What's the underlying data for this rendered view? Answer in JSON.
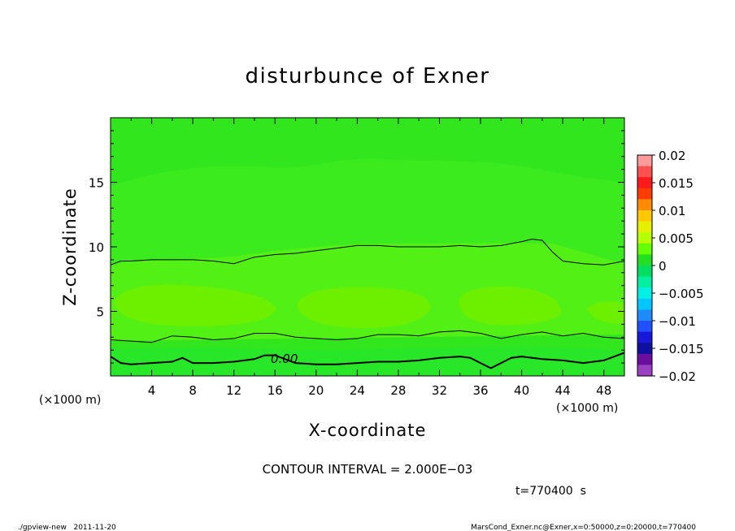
{
  "chart_data": {
    "type": "heatmap",
    "title": "disturbunce of Exner",
    "xlabel": "X-coordinate",
    "ylabel": "Z-coordinate",
    "x_unit_label_left": "(×1000 m)",
    "x_unit_label_right": "(×1000 m)",
    "xlim": [
      0,
      50
    ],
    "ylim": [
      0,
      20
    ],
    "x_ticks": [
      "4",
      "8",
      "12",
      "16",
      "20",
      "24",
      "28",
      "32",
      "36",
      "40",
      "44",
      "48"
    ],
    "y_ticks": [
      "5",
      "10",
      "15"
    ],
    "colorbar": {
      "labels": [
        "0.02",
        "0.015",
        "0.01",
        "0.005",
        "0",
        "−0.005",
        "−0.01",
        "−0.015",
        "−0.02"
      ],
      "values": [
        0.02,
        0.015,
        0.01,
        0.005,
        0,
        -0.005,
        -0.01,
        -0.015,
        -0.02
      ],
      "colors_top_to_bottom": [
        "#ff9a9a",
        "#ff5050",
        "#ff1a1a",
        "#ff3c00",
        "#ff8c00",
        "#ffc800",
        "#e6f000",
        "#b4ff00",
        "#64ff00",
        "#20e020",
        "#00e060",
        "#00f0a0",
        "#00f0e6",
        "#00c8ff",
        "#1e8cff",
        "#2050ff",
        "#1818d8",
        "#1010a0",
        "#6a0ea0",
        "#9a40c0"
      ]
    },
    "contour_label": "0.00",
    "contour_interval_text": "CONTOUR INTERVAL = 2.000E−03",
    "time_text": "t=770400  s",
    "contours": [
      {
        "name": "upper",
        "x": [
          0,
          1,
          2,
          4,
          6,
          8,
          10,
          12,
          14,
          16,
          18,
          20,
          22,
          24,
          26,
          28,
          30,
          32,
          34,
          36,
          38,
          40,
          41,
          42,
          43,
          44,
          46,
          48,
          50
        ],
        "z": [
          8.6,
          8.9,
          8.9,
          9.0,
          9.0,
          9.0,
          8.9,
          8.7,
          9.2,
          9.4,
          9.5,
          9.7,
          9.9,
          10.1,
          10.1,
          10.0,
          10.0,
          10.0,
          10.1,
          10.0,
          10.1,
          10.4,
          10.6,
          10.5,
          9.6,
          8.9,
          8.7,
          8.6,
          8.9
        ]
      },
      {
        "name": "lower",
        "x": [
          0,
          2,
          4,
          6,
          8,
          10,
          12,
          14,
          16,
          18,
          20,
          22,
          24,
          26,
          28,
          30,
          32,
          34,
          36,
          38,
          40,
          42,
          44,
          46,
          48,
          50
        ],
        "z": [
          2.8,
          2.7,
          2.6,
          3.1,
          3.0,
          2.8,
          2.9,
          3.3,
          3.3,
          3.0,
          2.9,
          2.8,
          2.9,
          3.2,
          3.2,
          3.1,
          3.4,
          3.5,
          3.3,
          2.9,
          3.2,
          3.4,
          3.1,
          3.3,
          3.0,
          2.9
        ]
      },
      {
        "name": "zero",
        "x": [
          0,
          1,
          2,
          4,
          6,
          7,
          8,
          10,
          12,
          14,
          15,
          16,
          18,
          20,
          22,
          24,
          26,
          28,
          30,
          32,
          34,
          35,
          36,
          37,
          38,
          39,
          40,
          42,
          44,
          46,
          48,
          50
        ],
        "z": [
          1.5,
          1.0,
          0.9,
          1.0,
          1.1,
          1.4,
          1.0,
          1.0,
          1.1,
          1.3,
          1.6,
          1.6,
          1.0,
          0.9,
          0.9,
          1.0,
          1.1,
          1.1,
          1.2,
          1.4,
          1.5,
          1.4,
          1.0,
          0.6,
          1.0,
          1.4,
          1.5,
          1.3,
          1.2,
          1.0,
          1.2,
          1.8
        ]
      }
    ]
  },
  "footer": {
    "left": "./gpview-new   2011-11-20",
    "right": "MarsCond_Exner.nc@Exner,x=0:50000,z=0:20000,t=770400"
  }
}
